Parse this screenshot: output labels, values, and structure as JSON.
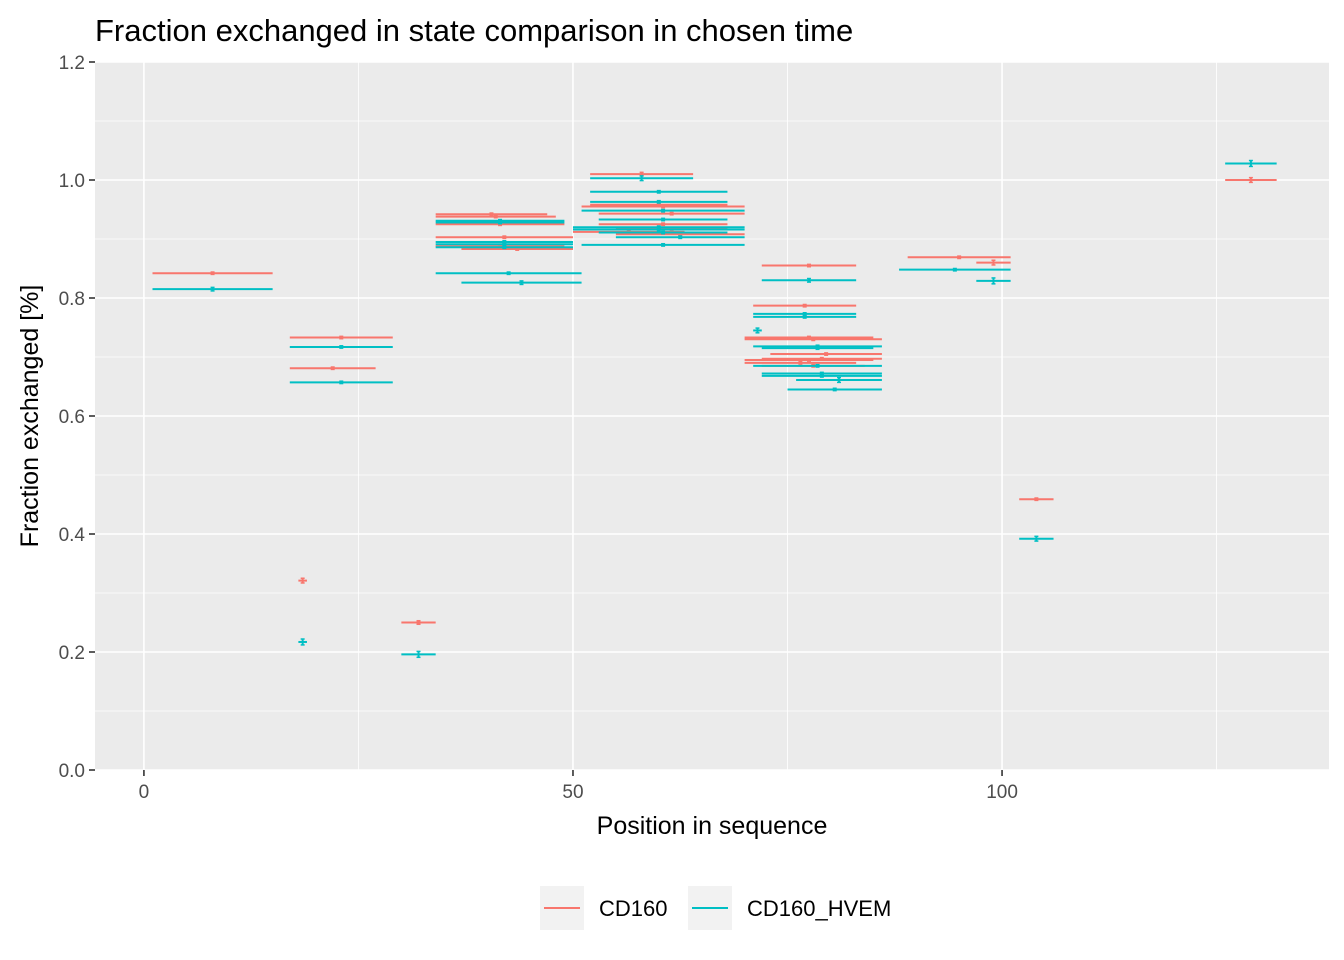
{
  "chart_data": {
    "type": "line",
    "title": "Fraction exchanged in state comparison in chosen time",
    "xlabel": "Position in sequence",
    "ylabel": "Fraction exchanged [%]",
    "xlim": [
      -5.7,
      138.1
    ],
    "ylim": [
      0,
      1.2
    ],
    "x_ticks": [
      0,
      50,
      100
    ],
    "x_tick_labels": [
      "0",
      "50",
      "100"
    ],
    "y_ticks": [
      0,
      0.2,
      0.4,
      0.6,
      0.8,
      1.0,
      1.2
    ],
    "y_tick_labels": [
      "0.0",
      "0.2",
      "0.4",
      "0.6",
      "0.8",
      "1.0",
      "1.2"
    ],
    "grid": true,
    "legend_position": "bottom",
    "colors": {
      "CD160": "#F8766D",
      "CD160_HVEM": "#00BFC4",
      "panel": "#EBEBEB",
      "grid": "#FFFFFF"
    },
    "series": [
      {
        "name": "CD160",
        "segments": [
          {
            "start": 1,
            "end": 15,
            "value": 0.842,
            "err": 0.002
          },
          {
            "start": 17,
            "end": 29,
            "value": 0.733,
            "err": 0.002
          },
          {
            "start": 17,
            "end": 27,
            "value": 0.681,
            "err": 0.002
          },
          {
            "start": 18,
            "end": 19,
            "value": 0.321,
            "err": 0.004
          },
          {
            "start": 30,
            "end": 34,
            "value": 0.25,
            "err": 0.003
          },
          {
            "start": 34,
            "end": 47,
            "value": 0.942,
            "err": 0.002
          },
          {
            "start": 34,
            "end": 48,
            "value": 0.938,
            "err": 0.002
          },
          {
            "start": 34,
            "end": 49,
            "value": 0.925,
            "err": 0.002
          },
          {
            "start": 34,
            "end": 50,
            "value": 0.903,
            "err": 0.002
          },
          {
            "start": 34,
            "end": 49,
            "value": 0.888,
            "err": 0.002
          },
          {
            "start": 37,
            "end": 50,
            "value": 0.883,
            "err": 0.002
          },
          {
            "start": 52,
            "end": 64,
            "value": 1.01,
            "err": 0.003
          },
          {
            "start": 52,
            "end": 68,
            "value": 0.958,
            "err": 0.002
          },
          {
            "start": 51,
            "end": 70,
            "value": 0.955,
            "err": 0.002
          },
          {
            "start": 53,
            "end": 70,
            "value": 0.943,
            "err": 0.002
          },
          {
            "start": 53,
            "end": 68,
            "value": 0.925,
            "err": 0.002
          },
          {
            "start": 55,
            "end": 68,
            "value": 0.917,
            "err": 0.002
          },
          {
            "start": 50,
            "end": 63,
            "value": 0.912,
            "err": 0.002
          },
          {
            "start": 55,
            "end": 70,
            "value": 0.908,
            "err": 0.002
          },
          {
            "start": 72,
            "end": 83,
            "value": 0.855,
            "err": 0.002
          },
          {
            "start": 71,
            "end": 83,
            "value": 0.787,
            "err": 0.002
          },
          {
            "start": 70,
            "end": 85,
            "value": 0.733,
            "err": 0.002
          },
          {
            "start": 70,
            "end": 86,
            "value": 0.73,
            "err": 0.002
          },
          {
            "start": 73,
            "end": 86,
            "value": 0.705,
            "err": 0.002
          },
          {
            "start": 70,
            "end": 85,
            "value": 0.695,
            "err": 0.002
          },
          {
            "start": 72,
            "end": 86,
            "value": 0.697,
            "err": 0.002
          },
          {
            "start": 70,
            "end": 83,
            "value": 0.69,
            "err": 0.002
          },
          {
            "start": 72,
            "end": 84,
            "value": 0.685,
            "err": 0.002
          },
          {
            "start": 89,
            "end": 101,
            "value": 0.869,
            "err": 0.002
          },
          {
            "start": 97,
            "end": 101,
            "value": 0.86,
            "err": 0.004
          },
          {
            "start": 102,
            "end": 106,
            "value": 0.459,
            "err": 0.002
          },
          {
            "start": 126,
            "end": 132,
            "value": 1.0,
            "err": 0.004
          }
        ]
      },
      {
        "name": "CD160_HVEM",
        "segments": [
          {
            "start": 1,
            "end": 15,
            "value": 0.815,
            "err": 0.003
          },
          {
            "start": 17,
            "end": 29,
            "value": 0.717,
            "err": 0.002
          },
          {
            "start": 17,
            "end": 29,
            "value": 0.657,
            "err": 0.002
          },
          {
            "start": 18,
            "end": 19,
            "value": 0.217,
            "err": 0.005
          },
          {
            "start": 30,
            "end": 34,
            "value": 0.196,
            "err": 0.005
          },
          {
            "start": 34,
            "end": 49,
            "value": 0.931,
            "err": 0.002
          },
          {
            "start": 34,
            "end": 49,
            "value": 0.928,
            "err": 0.002
          },
          {
            "start": 34,
            "end": 50,
            "value": 0.895,
            "err": 0.002
          },
          {
            "start": 34,
            "end": 50,
            "value": 0.891,
            "err": 0.002
          },
          {
            "start": 34,
            "end": 50,
            "value": 0.886,
            "err": 0.002
          },
          {
            "start": 34,
            "end": 51,
            "value": 0.842,
            "err": 0.002
          },
          {
            "start": 37,
            "end": 51,
            "value": 0.826,
            "err": 0.003
          },
          {
            "start": 52,
            "end": 64,
            "value": 1.003,
            "err": 0.004
          },
          {
            "start": 52,
            "end": 68,
            "value": 0.98,
            "err": 0.002
          },
          {
            "start": 52,
            "end": 68,
            "value": 0.963,
            "err": 0.002
          },
          {
            "start": 51,
            "end": 70,
            "value": 0.948,
            "err": 0.002
          },
          {
            "start": 53,
            "end": 68,
            "value": 0.933,
            "err": 0.002
          },
          {
            "start": 50,
            "end": 70,
            "value": 0.92,
            "err": 0.002
          },
          {
            "start": 50,
            "end": 70,
            "value": 0.916,
            "err": 0.002
          },
          {
            "start": 53,
            "end": 68,
            "value": 0.911,
            "err": 0.002
          },
          {
            "start": 55,
            "end": 70,
            "value": 0.903,
            "err": 0.002
          },
          {
            "start": 51,
            "end": 70,
            "value": 0.89,
            "err": 0.002
          },
          {
            "start": 72,
            "end": 83,
            "value": 0.83,
            "err": 0.003
          },
          {
            "start": 71,
            "end": 83,
            "value": 0.773,
            "err": 0.002
          },
          {
            "start": 71,
            "end": 83,
            "value": 0.768,
            "err": 0.002
          },
          {
            "start": 71,
            "end": 72,
            "value": 0.745,
            "err": 0.004
          },
          {
            "start": 71,
            "end": 86,
            "value": 0.718,
            "err": 0.002
          },
          {
            "start": 72,
            "end": 85,
            "value": 0.715,
            "err": 0.002
          },
          {
            "start": 71,
            "end": 86,
            "value": 0.685,
            "err": 0.002
          },
          {
            "start": 72,
            "end": 86,
            "value": 0.672,
            "err": 0.002
          },
          {
            "start": 72,
            "end": 86,
            "value": 0.668,
            "err": 0.002
          },
          {
            "start": 76,
            "end": 86,
            "value": 0.661,
            "err": 0.004
          },
          {
            "start": 75,
            "end": 86,
            "value": 0.645,
            "err": 0.002
          },
          {
            "start": 88,
            "end": 101,
            "value": 0.848,
            "err": 0.002
          },
          {
            "start": 97,
            "end": 101,
            "value": 0.829,
            "err": 0.005
          },
          {
            "start": 102,
            "end": 106,
            "value": 0.392,
            "err": 0.004
          },
          {
            "start": 126,
            "end": 132,
            "value": 1.028,
            "err": 0.005
          }
        ]
      }
    ]
  }
}
